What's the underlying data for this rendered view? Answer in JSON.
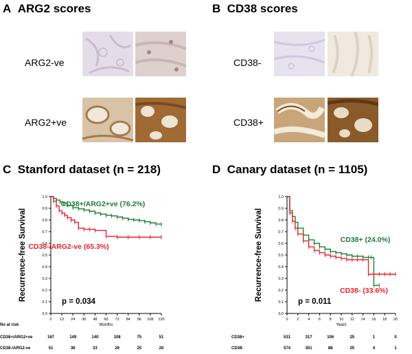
{
  "panels": {
    "a": {
      "letter": "A",
      "title": "ARG2 scores",
      "row1": "ARG2-ve",
      "row2": "ARG2+ve"
    },
    "b": {
      "letter": "B",
      "title": "CD38 scores",
      "row1": "CD38-",
      "row2": "CD38+"
    },
    "c": {
      "letter": "C",
      "title": "Stanford dataset (n = 218)"
    },
    "d": {
      "letter": "D",
      "title": "Canary dataset (n = 1105)"
    }
  },
  "colors": {
    "green": "#1f7a35",
    "red": "#e8202a",
    "stain_light": "#e9e2ec",
    "stain_dark": "#8a5a2a"
  },
  "chart_data": [
    {
      "type": "line",
      "id": "stanford",
      "ylabel": "Recurrence-free Survival",
      "xlabel": "Months",
      "ylim": [
        0,
        1
      ],
      "yticks": [
        "0.0",
        "0.1",
        "0.2",
        "0.3",
        "0.4",
        "0.5",
        "0.6",
        "0.7",
        "0.8",
        "0.9",
        "1.0"
      ],
      "xticks": [
        "0",
        "12",
        "24",
        "36",
        "48",
        "60",
        "72",
        "84",
        "96",
        "108",
        "120"
      ],
      "pvalue": "p = 0.034",
      "series": [
        {
          "name": "CD38+/ARG2+ve (76.2%)",
          "color": "green",
          "x": [
            0,
            3,
            6,
            10,
            14,
            18,
            24,
            30,
            36,
            42,
            48,
            54,
            60,
            66,
            72,
            78,
            84,
            90,
            96,
            102,
            108,
            114,
            120
          ],
          "y": [
            1.0,
            0.985,
            0.97,
            0.955,
            0.94,
            0.925,
            0.905,
            0.895,
            0.885,
            0.875,
            0.86,
            0.85,
            0.84,
            0.835,
            0.825,
            0.815,
            0.805,
            0.8,
            0.795,
            0.785,
            0.775,
            0.765,
            0.762
          ]
        },
        {
          "name": "CD38-/ARG2-ve (65.3%)",
          "color": "red",
          "x": [
            0,
            3,
            6,
            9,
            12,
            15,
            18,
            22,
            26,
            30,
            36,
            42,
            48,
            60,
            72,
            84,
            96,
            108,
            120
          ],
          "y": [
            1.0,
            0.96,
            0.92,
            0.88,
            0.86,
            0.84,
            0.82,
            0.8,
            0.78,
            0.73,
            0.72,
            0.72,
            0.71,
            0.66,
            0.653,
            0.653,
            0.653,
            0.653,
            0.653
          ]
        }
      ],
      "risk_table": {
        "header": "No at risk",
        "rows": [
          {
            "label": "CD38+/ARG2+ve",
            "values": [
              "167",
              "149",
              "140",
              "108",
              "75",
              "51"
            ]
          },
          {
            "label": "CD38-/ARG2-ve",
            "values": [
              "51",
              "36",
              "33",
              "26",
              "25",
              "20"
            ]
          }
        ]
      }
    },
    {
      "type": "line",
      "id": "canary",
      "ylabel": "Recurrence-free Survival",
      "xlabel": "Years",
      "ylim": [
        0,
        1
      ],
      "yticks": [
        "0.0",
        "0.1",
        "0.2",
        "0.3",
        "0.4",
        "0.5",
        "0.6",
        "0.7",
        "0.8",
        "0.9",
        "1.0"
      ],
      "xticks": [
        "0",
        "2",
        "4",
        "6",
        "8",
        "10",
        "12",
        "14",
        "16",
        "18",
        "20"
      ],
      "pvalue": "p = 0.011",
      "series": [
        {
          "name": "CD38+ (24.0%)",
          "color": "green",
          "x": [
            0,
            0.5,
            1,
            1.5,
            2,
            3,
            4,
            5,
            6,
            7,
            8,
            9,
            10,
            11,
            12,
            13,
            14,
            15,
            15.5,
            16,
            17
          ],
          "y": [
            1.0,
            0.88,
            0.83,
            0.78,
            0.73,
            0.67,
            0.63,
            0.6,
            0.57,
            0.55,
            0.53,
            0.52,
            0.51,
            0.5,
            0.49,
            0.49,
            0.48,
            0.48,
            0.48,
            0.24,
            0.24
          ]
        },
        {
          "name": "CD38- (33.6%)",
          "color": "red",
          "x": [
            0,
            0.5,
            1,
            1.5,
            2,
            3,
            4,
            5,
            6,
            7,
            8,
            9,
            10,
            11,
            12,
            13,
            14,
            15,
            16,
            17,
            18,
            19,
            20
          ],
          "y": [
            1.0,
            0.86,
            0.79,
            0.73,
            0.68,
            0.62,
            0.57,
            0.54,
            0.52,
            0.5,
            0.49,
            0.48,
            0.47,
            0.46,
            0.46,
            0.46,
            0.46,
            0.336,
            0.336,
            0.336,
            0.336,
            0.336,
            0.336
          ]
        }
      ],
      "risk_table": {
        "header": "",
        "rows": [
          {
            "label": "CD38+",
            "values": [
              "531",
              "317",
              "106",
              "25",
              "1",
              "0"
            ]
          },
          {
            "label": "CD38-",
            "values": [
              "574",
              "301",
              "88",
              "25",
              "4",
              "1"
            ]
          }
        ]
      }
    }
  ]
}
